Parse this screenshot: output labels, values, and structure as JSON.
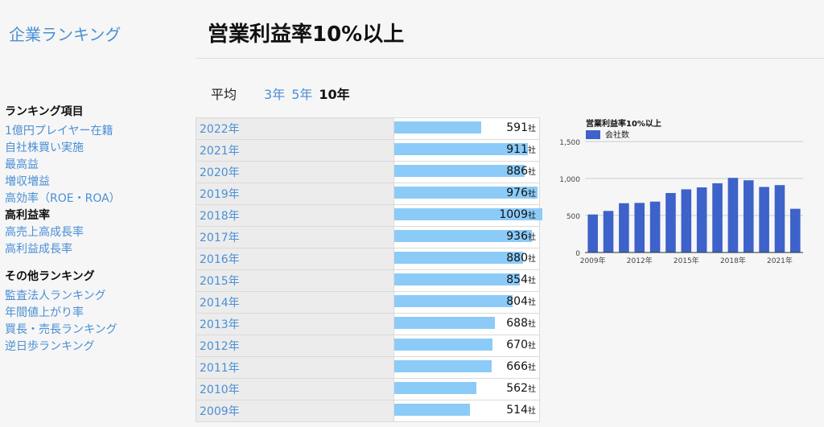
{
  "site": {
    "logo": "企業ランキング"
  },
  "page_title": "営業利益率10%以上",
  "period": {
    "label": "平均",
    "options": [
      "3年",
      "5年",
      "10年"
    ],
    "active": "10年"
  },
  "sidebar": {
    "sections": [
      {
        "title": "ランキング項目",
        "items": [
          {
            "label": "1億円プレイヤー在籍",
            "active": false
          },
          {
            "label": "自社株買い実施",
            "active": false
          },
          {
            "label": "最高益",
            "active": false
          },
          {
            "label": "増収増益",
            "active": false
          },
          {
            "label": "高効率（ROE・ROA）",
            "active": false
          },
          {
            "label": "高利益率",
            "active": true
          },
          {
            "label": "高売上高成長率",
            "active": false
          },
          {
            "label": "高利益成長率",
            "active": false
          }
        ]
      },
      {
        "title": "その他ランキング",
        "items": [
          {
            "label": "監査法人ランキング",
            "active": false
          },
          {
            "label": "年間値上がり率",
            "active": false
          },
          {
            "label": "買長・売長ランキング",
            "active": false
          },
          {
            "label": "逆日歩ランキング",
            "active": false
          }
        ]
      }
    ]
  },
  "table": {
    "unit": "社",
    "max": 1009,
    "rows": [
      {
        "year": "2022年",
        "value": 591
      },
      {
        "year": "2021年",
        "value": 911
      },
      {
        "year": "2020年",
        "value": 886
      },
      {
        "year": "2019年",
        "value": 976
      },
      {
        "year": "2018年",
        "value": 1009
      },
      {
        "year": "2017年",
        "value": 936
      },
      {
        "year": "2016年",
        "value": 880
      },
      {
        "year": "2015年",
        "value": 854
      },
      {
        "year": "2014年",
        "value": 804
      },
      {
        "year": "2013年",
        "value": 688
      },
      {
        "year": "2012年",
        "value": 670
      },
      {
        "year": "2011年",
        "value": 666
      },
      {
        "year": "2010年",
        "value": 562
      },
      {
        "year": "2009年",
        "value": 514
      }
    ]
  },
  "chart_data": {
    "type": "bar",
    "title": "営業利益率10%以上",
    "categories": [
      "2009年",
      "2010年",
      "2011年",
      "2012年",
      "2013年",
      "2014年",
      "2015年",
      "2016年",
      "2017年",
      "2018年",
      "2019年",
      "2020年",
      "2021年",
      "2022年"
    ],
    "series": [
      {
        "name": "会社数",
        "values": [
          514,
          562,
          666,
          670,
          688,
          804,
          854,
          880,
          936,
          1009,
          976,
          886,
          911,
          591
        ],
        "color": "#3d62c9"
      }
    ],
    "x_tick_labels": [
      "2009年",
      "2012年",
      "2015年",
      "2018年",
      "2021年"
    ],
    "y_ticks": [
      0,
      500,
      1000,
      1500
    ],
    "y_tick_labels": [
      "0",
      "500",
      "1,000",
      "1,500"
    ],
    "ylim": [
      0,
      1500
    ],
    "legend_position": "top-left",
    "grid": true
  }
}
